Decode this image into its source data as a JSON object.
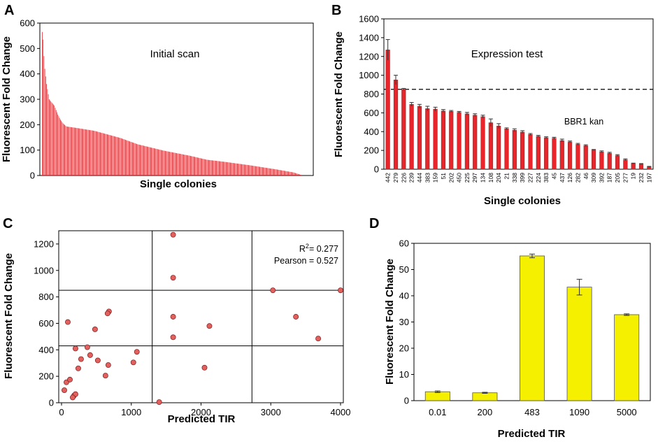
{
  "figure": {
    "panel_labels": [
      "A",
      "B",
      "C",
      "D"
    ]
  },
  "chart_data": [
    {
      "id": "A",
      "type": "bar",
      "title": "Initial scan",
      "xlabel": "Single colonies",
      "ylabel": "Fluorescent Fold Change",
      "ylim": [
        0,
        600
      ],
      "yticks": [
        0,
        100,
        200,
        300,
        400,
        500,
        600
      ],
      "color": "#e8252b",
      "n_bars": 300,
      "values_description_anchor_points": [
        [
          0,
          565
        ],
        [
          1,
          535
        ],
        [
          2,
          470
        ],
        [
          3,
          420
        ],
        [
          5,
          360
        ],
        [
          8,
          300
        ],
        [
          14,
          275
        ],
        [
          18,
          240
        ],
        [
          21,
          220
        ],
        [
          24,
          205
        ],
        [
          28,
          193
        ],
        [
          40,
          187
        ],
        [
          60,
          176
        ],
        [
          90,
          148
        ],
        [
          110,
          123
        ],
        [
          140,
          98
        ],
        [
          170,
          78
        ],
        [
          190,
          62
        ],
        [
          210,
          54
        ],
        [
          240,
          40
        ],
        [
          270,
          24
        ],
        [
          290,
          12
        ],
        [
          299,
          2
        ]
      ]
    },
    {
      "id": "B",
      "type": "bar",
      "title": "Expression test",
      "xlabel": "Single colonies",
      "ylabel": "Fluorescent Fold Change",
      "ylim": [
        0,
        1600
      ],
      "yticks": [
        0,
        200,
        400,
        600,
        800,
        1000,
        1200,
        1400,
        1600
      ],
      "color": "#e8252b",
      "reference_line": {
        "label": "BBR1 kan",
        "value": 850
      },
      "categories": [
        "442",
        "279",
        "226",
        "239",
        "444",
        "383",
        "159",
        "51",
        "202",
        "450",
        "225",
        "297",
        "134",
        "108",
        "204",
        "21",
        "338",
        "399",
        "227",
        "224",
        "383",
        "45",
        "437",
        "126",
        "282",
        "46",
        "309",
        "392",
        "187",
        "205",
        "277",
        "19",
        "232",
        "197"
      ],
      "values": [
        1270,
        950,
        850,
        690,
        670,
        645,
        640,
        620,
        615,
        605,
        590,
        575,
        560,
        495,
        460,
        430,
        415,
        395,
        370,
        350,
        335,
        330,
        305,
        290,
        265,
        250,
        205,
        185,
        170,
        145,
        100,
        60,
        55,
        25
      ],
      "errors": [
        110,
        50,
        10,
        20,
        20,
        25,
        20,
        15,
        10,
        10,
        15,
        15,
        15,
        40,
        25,
        10,
        15,
        15,
        10,
        10,
        10,
        10,
        15,
        10,
        10,
        10,
        5,
        10,
        10,
        10,
        10,
        5,
        5,
        5
      ]
    },
    {
      "id": "C",
      "type": "scatter",
      "xlabel": "Predicted TIR",
      "ylabel": "Fluorescent Fold Change",
      "xlim": [
        0,
        4000
      ],
      "ylim": [
        0,
        1300
      ],
      "xticks": [
        0,
        1000,
        2000,
        3000,
        4000
      ],
      "yticks": [
        0,
        200,
        400,
        600,
        800,
        1000,
        1200
      ],
      "stats": {
        "r2_label": "R",
        "r2_sup": "2",
        "r2_value": "= 0.277",
        "pearson": "Pearson = 0.527"
      },
      "vlines": [
        1300,
        2730
      ],
      "hlines": [
        850,
        430
      ],
      "color": "#e2605e",
      "points": [
        [
          1600,
          1270
        ],
        [
          1600,
          945
        ],
        [
          3030,
          850
        ],
        [
          4000,
          850
        ],
        [
          680,
          690
        ],
        [
          660,
          675
        ],
        [
          1600,
          650
        ],
        [
          3360,
          650
        ],
        [
          90,
          610
        ],
        [
          2120,
          580
        ],
        [
          480,
          555
        ],
        [
          1600,
          495
        ],
        [
          3680,
          485
        ],
        [
          200,
          410
        ],
        [
          370,
          420
        ],
        [
          1080,
          385
        ],
        [
          410,
          360
        ],
        [
          280,
          330
        ],
        [
          520,
          320
        ],
        [
          1030,
          305
        ],
        [
          670,
          285
        ],
        [
          2050,
          265
        ],
        [
          240,
          260
        ],
        [
          630,
          205
        ],
        [
          70,
          155
        ],
        [
          120,
          175
        ],
        [
          40,
          95
        ],
        [
          180,
          55
        ],
        [
          200,
          65
        ],
        [
          160,
          40
        ],
        [
          1400,
          5
        ]
      ]
    },
    {
      "id": "D",
      "type": "bar",
      "xlabel": "Predicted TIR",
      "ylabel": "Fluorescent Fold Change",
      "ylim": [
        0,
        60
      ],
      "yticks": [
        0,
        10,
        20,
        30,
        40,
        50,
        60
      ],
      "color": "#f5ef00",
      "categories": [
        "0.01",
        "200",
        "483",
        "1090",
        "5000"
      ],
      "values": [
        3.4,
        3.0,
        55.2,
        43.3,
        32.8
      ],
      "errors": [
        0.3,
        0.2,
        0.7,
        3.0,
        0.3
      ]
    }
  ]
}
